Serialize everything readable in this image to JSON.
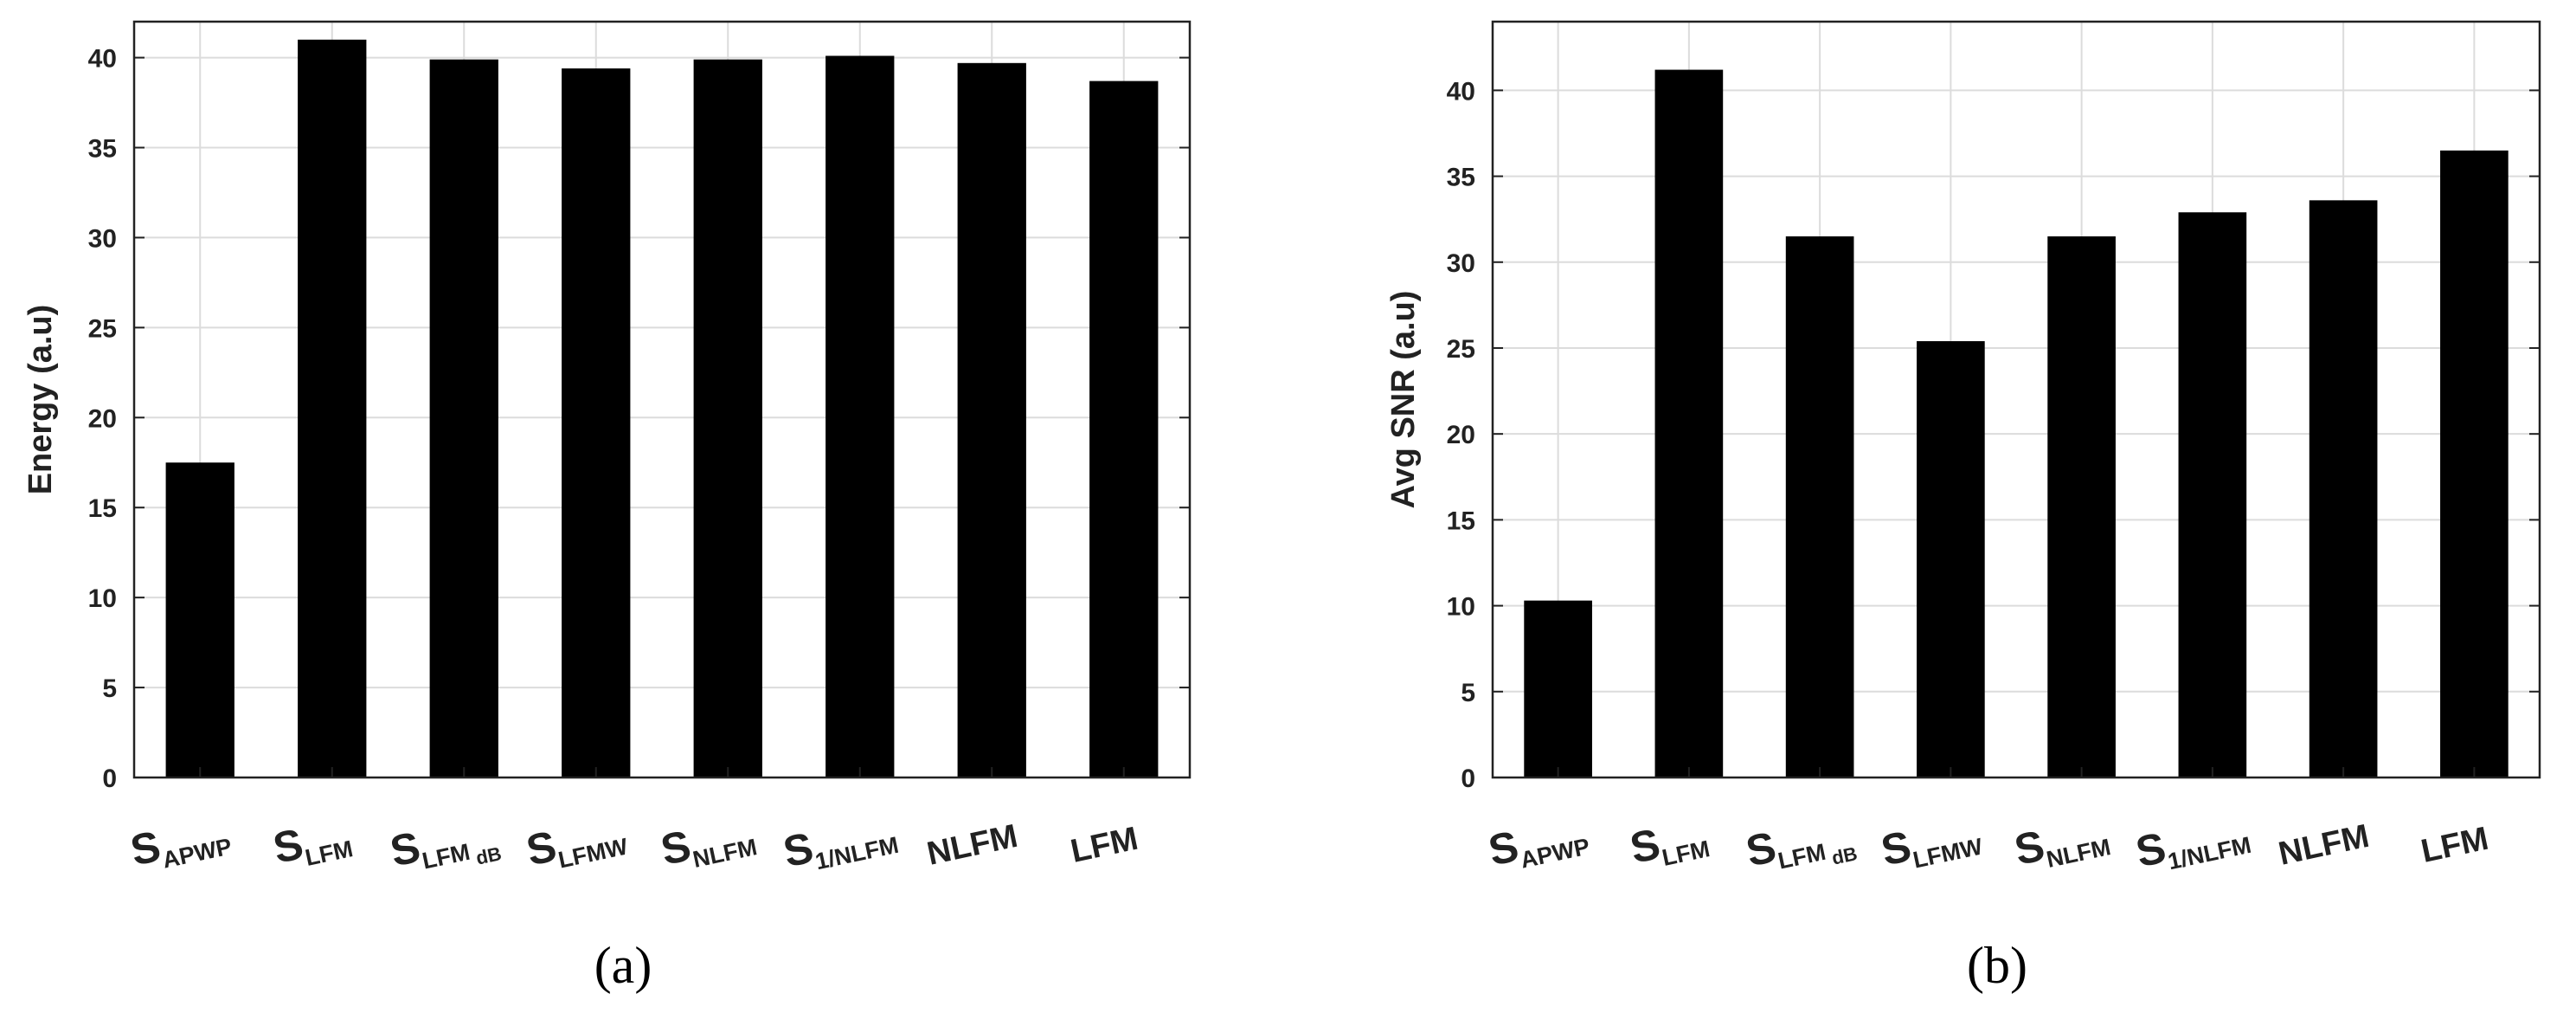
{
  "chart_data": [
    {
      "type": "bar",
      "panel_label": "(a)",
      "ylabel": "Energy (a.u)",
      "ylim": [
        0,
        42
      ],
      "yticks": [
        0,
        5,
        10,
        15,
        20,
        25,
        30,
        35,
        40
      ],
      "grid": true,
      "categories": [
        {
          "base": "S",
          "sub": "APWP"
        },
        {
          "base": "S",
          "sub": "LFM"
        },
        {
          "base": "S",
          "sub": "LFM",
          "sub2": "dB"
        },
        {
          "base": "S",
          "sub": "LFMW"
        },
        {
          "base": "S",
          "sub": "NLFM"
        },
        {
          "base": "S",
          "sub": "1/NLFM"
        },
        {
          "base": "NLFM"
        },
        {
          "base": "LFM"
        }
      ],
      "values": [
        17.5,
        41.0,
        39.9,
        39.4,
        39.9,
        40.1,
        39.7,
        38.7
      ],
      "bar_color": "#000000"
    },
    {
      "type": "bar",
      "panel_label": "(b)",
      "ylabel": "Avg SNR (a.u)",
      "ylim": [
        0,
        44
      ],
      "yticks": [
        0,
        5,
        10,
        15,
        20,
        25,
        30,
        35,
        40
      ],
      "grid": true,
      "categories": [
        {
          "base": "S",
          "sub": "APWP"
        },
        {
          "base": "S",
          "sub": "LFM"
        },
        {
          "base": "S",
          "sub": "LFM",
          "sub2": "dB"
        },
        {
          "base": "S",
          "sub": "LFMW"
        },
        {
          "base": "S",
          "sub": "NLFM"
        },
        {
          "base": "S",
          "sub": "1/NLFM"
        },
        {
          "base": "NLFM"
        },
        {
          "base": "LFM"
        }
      ],
      "values": [
        10.3,
        41.2,
        31.5,
        25.4,
        31.5,
        32.9,
        33.6,
        36.5
      ],
      "bar_color": "#000000"
    }
  ]
}
